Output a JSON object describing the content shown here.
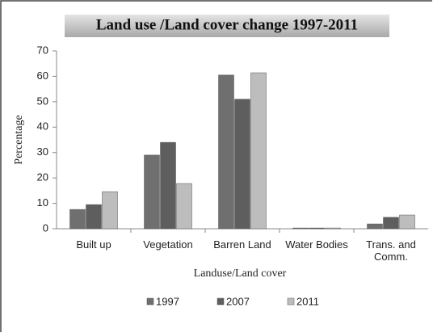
{
  "chart_data": {
    "type": "bar",
    "title": "Land use /Land cover change 1997-2011",
    "x_label": "Landuse/Land cover",
    "y_label": "Percentage",
    "categories": [
      "Built up",
      "Vegetation",
      "Barren Land",
      "Water Bodies",
      "Trans. and Comm."
    ],
    "series": [
      {
        "name": "1997",
        "color": "#6f6f6f",
        "values": [
          7.6,
          29,
          60.5,
          0.3,
          1.9
        ]
      },
      {
        "name": "2007",
        "color": "#5e5e5e",
        "values": [
          9.5,
          34,
          51,
          0.3,
          4.5
        ]
      },
      {
        "name": "2011",
        "color": "#bdbdbd",
        "values": [
          14.6,
          17.8,
          61.4,
          0.3,
          5.4
        ]
      }
    ],
    "ylim": [
      0,
      70
    ],
    "yticks": [
      0,
      10,
      20,
      30,
      40,
      50,
      60,
      70
    ],
    "grid": false,
    "legend": "bottom"
  }
}
